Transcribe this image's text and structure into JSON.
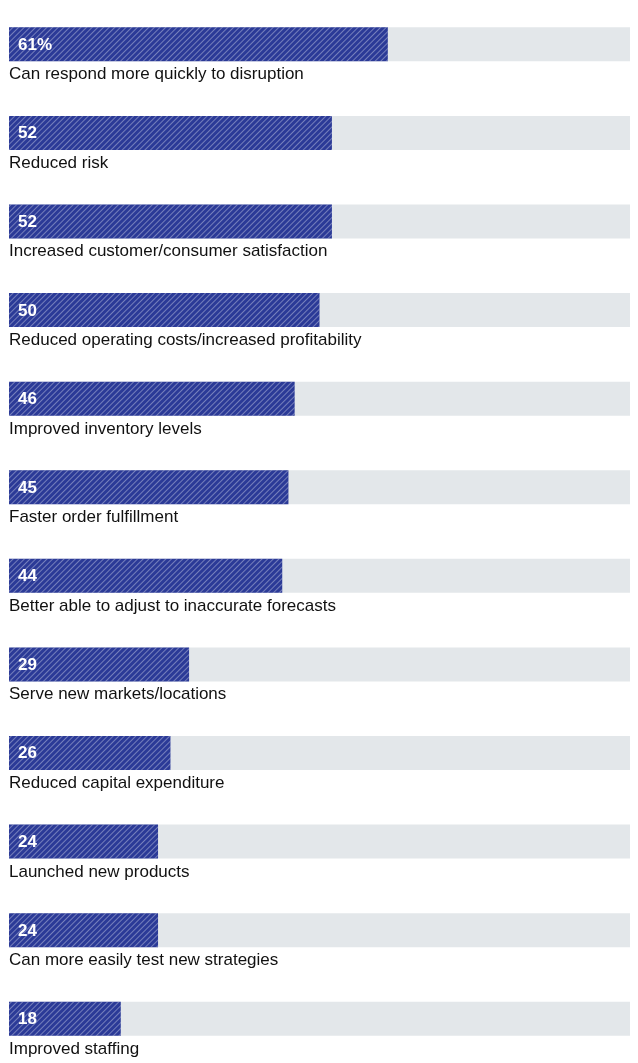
{
  "chart_data": {
    "type": "bar",
    "orientation": "horizontal",
    "categories": [
      "Can respond more quickly to disruption",
      "Reduced risk",
      "Increased customer/consumer satisfaction",
      "Reduced operating costs/increased profitability",
      "Improved inventory levels",
      "Faster order fulfillment",
      "Better able to adjust to inaccurate forecasts",
      "Serve new markets/locations",
      "Reduced capital expenditure",
      "Launched new products",
      "Can more easily test new strategies",
      "Improved staffing"
    ],
    "values": [
      61,
      52,
      52,
      50,
      46,
      45,
      44,
      29,
      26,
      24,
      24,
      18
    ],
    "value_labels": [
      "61%",
      "52",
      "52",
      "50",
      "46",
      "45",
      "44",
      "29",
      "26",
      "24",
      "24",
      "18"
    ],
    "color": "#2b3a97",
    "xlim": [
      0,
      100
    ],
    "tick_labels": "y",
    "grid": false
  }
}
